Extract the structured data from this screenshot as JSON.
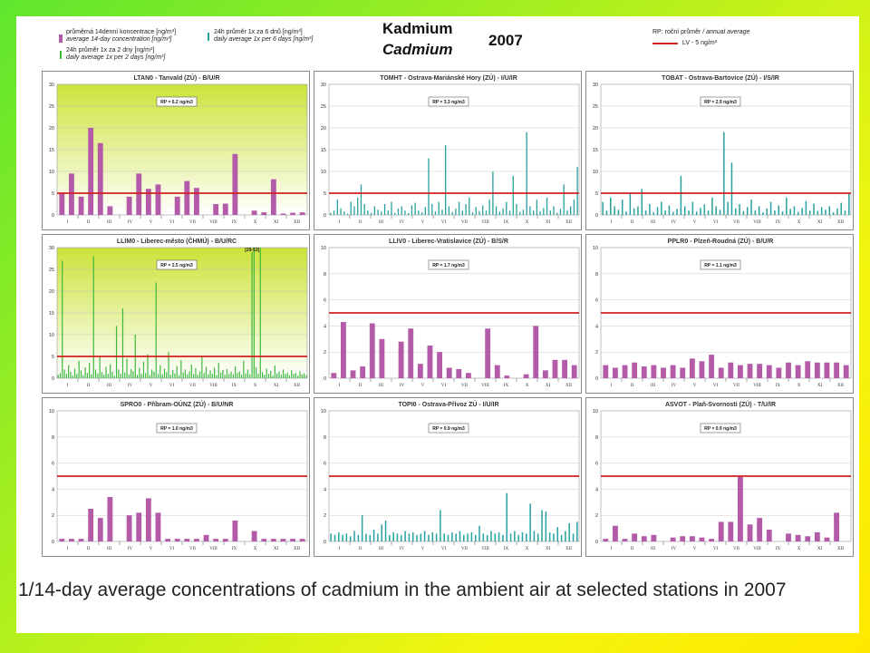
{
  "header": {
    "title": "Kadmium",
    "title_en": "Cadmium",
    "year": "2007",
    "legend_left": [
      {
        "cz": "průměrná 14denní koncentrace [ng/m³]",
        "en": "average 14-day concentration [ng/m³]",
        "color": "#b35ba8"
      },
      {
        "cz": "24h průměr 1x za 2 dny [ng/m³]",
        "en": "daily average 1x per 2 days [ng/m³]",
        "color": "#3cb83c"
      }
    ],
    "legend_mid": {
      "cz": "24h průměr 1x za 6 dnů [ng/m³]",
      "en": "daily average 1x per 6 days [ng/m³]",
      "color": "#2aa0a0"
    },
    "legend_right": {
      "cz": "RP: roční průměr",
      "en": "/ annual average",
      "lv": "LV    - 5 ng/m³",
      "color": "#d42020"
    }
  },
  "caption": "1/14-day average concentrations of cadmium in the ambient air at selected stations in 2007",
  "chart_data": [
    {
      "type": "bar",
      "title": "LTAN0 - Tanvald (ZÚ) - B/U/R",
      "rp_label": "RP = 6.2 ng/m3",
      "ylim": [
        0,
        30
      ],
      "yticks": [
        0,
        5,
        10,
        15,
        20,
        25,
        30
      ],
      "limit": 5,
      "series": "14day",
      "bg": "gradient",
      "months": [
        "I",
        "II",
        "III",
        "IV",
        "V",
        "VI",
        "VII",
        "VIII",
        "IX",
        "X",
        "XI",
        "XII"
      ],
      "values": [
        5.0,
        9.5,
        4.2,
        20.0,
        16.5,
        2.0,
        0,
        4.2,
        9.5,
        6.0,
        7.0,
        0,
        4.2,
        7.8,
        6.2,
        0,
        2.5,
        2.6,
        14.0,
        0,
        1.0,
        0.6,
        8.2,
        0.3,
        0.5,
        0.6
      ]
    },
    {
      "type": "bar",
      "title": "TOMHT - Ostrava-Mariánské Hory (ZÚ) - I/U/IR",
      "rp_label": "RP = 3.3 ng/m3",
      "ylim": [
        0,
        30
      ],
      "yticks": [
        0,
        5,
        10,
        15,
        20,
        25,
        30
      ],
      "limit": 5,
      "series": "6day",
      "bg": "white",
      "months": [
        "I",
        "II",
        "III",
        "IV",
        "V",
        "VI",
        "VII",
        "VIII",
        "IX",
        "X",
        "XI",
        "XII"
      ],
      "values": [
        0.5,
        1.0,
        3.5,
        1.5,
        0.8,
        0.3,
        3.0,
        2.0,
        4.0,
        7.0,
        2.5,
        1.0,
        0.5,
        2.0,
        1.2,
        0.8,
        2.5,
        1.0,
        3.0,
        0.5,
        1.5,
        2.0,
        1.0,
        0.4,
        2.2,
        2.8,
        1.0,
        0.6,
        1.8,
        13.0,
        2.5,
        0.8,
        3.0,
        1.2,
        16.0,
        2.0,
        0.7,
        1.5,
        3.0,
        1.0,
        2.5,
        4.0,
        0.6,
        1.8,
        0.9,
        2.2,
        1.0,
        3.5,
        10.0,
        2.0,
        0.8,
        1.5,
        3.0,
        1.0,
        9.0,
        2.5,
        0.7,
        1.2,
        19.0,
        2.0,
        1.0,
        3.5,
        0.8,
        1.6,
        4.0,
        1.0,
        2.0,
        0.5,
        1.4,
        7.0,
        1.0,
        2.0,
        3.5,
        11.0
      ]
    },
    {
      "type": "bar",
      "title": "TOBAT - Ostrava-Bartovice (ZÚ) - I/S/IR",
      "rp_label": "RP = 2.9 ng/m3",
      "ylim": [
        0,
        30
      ],
      "yticks": [
        0,
        5,
        10,
        15,
        20,
        25,
        30
      ],
      "limit": 5,
      "series": "6day",
      "bg": "white",
      "months": [
        "I",
        "II",
        "III",
        "IV",
        "V",
        "VI",
        "VII",
        "VIII",
        "IX",
        "X",
        "XI",
        "XII"
      ],
      "values": [
        3.0,
        1.0,
        4.0,
        2.0,
        1.2,
        3.5,
        0.8,
        5.0,
        1.5,
        2.0,
        6.0,
        1.0,
        2.5,
        0.6,
        1.8,
        3.0,
        1.0,
        2.2,
        0.7,
        1.4,
        9.0,
        2.0,
        1.0,
        3.0,
        0.8,
        1.6,
        2.4,
        1.0,
        4.0,
        2.0,
        1.2,
        19.0,
        3.0,
        12.0,
        1.5,
        2.5,
        0.9,
        1.8,
        3.5,
        1.0,
        2.0,
        0.6,
        1.5,
        3.0,
        1.0,
        2.2,
        0.8,
        4.0,
        1.4,
        2.0,
        0.7,
        1.6,
        3.2,
        1.0,
        2.6,
        0.9,
        1.8,
        1.2,
        2.0,
        0.6,
        1.5,
        2.8,
        1.0,
        5.0
      ]
    },
    {
      "type": "bar",
      "title": "LLIM0 - Liberec-město (ČHMÚ) - B/U/RC",
      "rp_label": "RP = 2.5 ng/m3",
      "peak_label": "[29-53]",
      "ylim": [
        0,
        30
      ],
      "yticks": [
        0,
        5,
        10,
        15,
        20,
        25,
        30
      ],
      "limit": 5,
      "series": "2day",
      "bg": "gradient",
      "months": [
        "I",
        "II",
        "III",
        "IV",
        "V",
        "VI",
        "VII",
        "VIII",
        "IX",
        "X",
        "XI",
        "XII"
      ],
      "values": [
        0.8,
        1.2,
        27.0,
        2.0,
        1.0,
        3.0,
        1.5,
        0.6,
        2.2,
        1.0,
        4.0,
        1.8,
        0.7,
        2.5,
        1.2,
        3.5,
        0.9,
        28.0,
        2.0,
        1.1,
        5.0,
        1.4,
        0.8,
        2.6,
        1.0,
        3.2,
        1.5,
        0.6,
        12.0,
        2.0,
        1.0,
        16.0,
        1.3,
        4.5,
        0.9,
        2.1,
        1.6,
        10.0,
        0.8,
        2.4,
        1.0,
        3.8,
        1.2,
        5.5,
        0.7,
        2.0,
        1.5,
        22.0,
        1.0,
        3.0,
        0.9,
        2.2,
        1.4,
        6.0,
        0.8,
        1.9,
        1.1,
        2.8,
        0.7,
        4.2,
        1.3,
        2.0,
        0.9,
        1.6,
        3.1,
        1.0,
        2.3,
        0.8,
        1.5,
        5.0,
        1.2,
        2.6,
        0.9,
        1.8,
        1.0,
        2.4,
        0.7,
        3.5,
        1.3,
        1.9,
        0.8,
        2.1,
        1.0,
        1.5,
        0.9,
        2.7,
        1.2,
        1.6,
        0.8,
        4.0,
        1.1,
        2.0,
        0.9,
        29.0,
        30.0,
        2.5,
        1.0,
        30.0,
        1.4,
        0.8,
        2.2,
        1.0,
        1.7,
        0.6,
        2.9,
        1.1,
        1.5,
        0.8,
        2.0,
        1.0,
        1.3,
        0.7,
        1.8,
        1.0,
        1.2,
        0.6,
        1.6,
        0.9,
        1.1,
        0.7
      ]
    },
    {
      "type": "bar",
      "title": "LLIV0 - Liberec-Vratislavice (ZÚ) - B/S/R",
      "rp_label": "RP = 1.7 ng/m3",
      "ylim": [
        0,
        10
      ],
      "yticks": [
        0,
        2,
        4,
        6,
        8,
        10
      ],
      "limit": 5,
      "series": "14day",
      "bg": "white",
      "months": [
        "I",
        "II",
        "III",
        "IV",
        "V",
        "VI",
        "VII",
        "VIII",
        "IX",
        "X",
        "XI",
        "XII"
      ],
      "values": [
        0.4,
        4.3,
        0.6,
        0.9,
        4.2,
        3.0,
        0,
        2.8,
        3.8,
        1.1,
        2.5,
        2.0,
        0.8,
        0.7,
        0.4,
        0,
        3.8,
        1.0,
        0.2,
        0,
        0.3,
        4.0,
        0.6,
        1.4,
        1.4,
        1.0
      ]
    },
    {
      "type": "bar",
      "title": "PPLR0 - Plzeň-Roudná (ZÚ) - B/U/R",
      "rp_label": "RP = 1.1 ng/m3",
      "ylim": [
        0,
        10
      ],
      "yticks": [
        0,
        2,
        4,
        6,
        8,
        10
      ],
      "limit": 5,
      "series": "14day",
      "bg": "white",
      "months": [
        "I",
        "II",
        "III",
        "IV",
        "V",
        "VI",
        "VII",
        "VIII",
        "IX",
        "X",
        "XI",
        "XII"
      ],
      "values": [
        1.0,
        0.8,
        1.0,
        1.2,
        0.9,
        1.0,
        0.8,
        1.0,
        0.8,
        1.5,
        1.3,
        1.8,
        0.8,
        1.2,
        1.0,
        1.1,
        1.1,
        1.0,
        0.8,
        1.2,
        1.0,
        1.3,
        1.2,
        1.2,
        1.2,
        1.0
      ]
    },
    {
      "type": "bar",
      "title": "SPRO0 - Příbram-OÚNZ (ZÚ) - B/U/NR",
      "rp_label": "RP = 1.0 ng/m3",
      "ylim": [
        0,
        10
      ],
      "yticks": [
        0,
        2,
        4,
        6,
        8,
        10
      ],
      "limit": 5,
      "series": "14day",
      "bg": "white",
      "months": [
        "I",
        "II",
        "III",
        "IV",
        "V",
        "VI",
        "VII",
        "VIII",
        "IX",
        "X",
        "XI",
        "XII"
      ],
      "values": [
        0.2,
        0.2,
        0.2,
        2.5,
        1.8,
        3.4,
        0,
        2.0,
        2.2,
        3.3,
        2.2,
        0.2,
        0.2,
        0.2,
        0.2,
        0.5,
        0.2,
        0.2,
        1.6,
        0,
        0.8,
        0.2,
        0.2,
        0.2,
        0.2,
        0.2
      ]
    },
    {
      "type": "bar",
      "title": "TOPI0 - Ostrava-Přívoz ZÚ - I/U/IR",
      "rp_label": "RP = 0.9 ng/m3",
      "ylim": [
        0,
        10
      ],
      "yticks": [
        0,
        2,
        4,
        6,
        8,
        10
      ],
      "limit": 5,
      "series": "6day",
      "bg": "white",
      "months": [
        "I",
        "II",
        "III",
        "IV",
        "V",
        "VI",
        "VII",
        "VIII",
        "IX",
        "X",
        "XI",
        "XII"
      ],
      "values": [
        0.6,
        0.5,
        0.7,
        0.5,
        0.6,
        0.4,
        0.8,
        0.5,
        2.0,
        0.6,
        0.5,
        0.9,
        0.6,
        1.3,
        1.6,
        0.5,
        0.7,
        0.6,
        0.5,
        0.8,
        0.6,
        0.7,
        0.5,
        0.6,
        0.8,
        0.5,
        0.7,
        0.6,
        2.4,
        0.6,
        0.5,
        0.7,
        0.6,
        0.8,
        0.5,
        0.6,
        0.7,
        0.5,
        1.2,
        0.6,
        0.5,
        0.8,
        0.6,
        0.7,
        0.5,
        3.7,
        0.6,
        0.8,
        0.5,
        0.7,
        0.6,
        2.9,
        0.8,
        0.6,
        2.4,
        2.3,
        0.7,
        0.6,
        1.1,
        0.5,
        0.8,
        1.4,
        0.6,
        1.5
      ]
    },
    {
      "type": "bar",
      "title": "ASVOT - Plaň-Svornosti (ZÚ) - T/U/IR",
      "rp_label": "RP = 0.9 ng/m3",
      "ylim": [
        0,
        10
      ],
      "yticks": [
        0,
        2,
        4,
        6,
        8,
        10
      ],
      "limit": 5,
      "series": "14day",
      "bg": "white",
      "months": [
        "I",
        "II",
        "III",
        "IV",
        "V",
        "VI",
        "VII",
        "VIII",
        "IX",
        "X",
        "XI",
        "XII"
      ],
      "values": [
        0.2,
        1.2,
        0.2,
        0.6,
        0.4,
        0.5,
        0,
        0.3,
        0.4,
        0.4,
        0.3,
        0.2,
        1.5,
        1.5,
        5.0,
        1.3,
        1.8,
        0.9,
        0,
        0.6,
        0.5,
        0.4,
        0.7,
        0.3,
        2.2,
        0
      ]
    }
  ]
}
